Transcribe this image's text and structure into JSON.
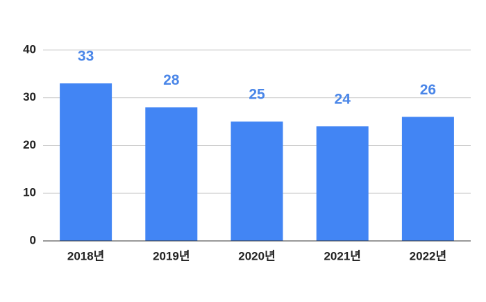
{
  "chart_data": {
    "type": "bar",
    "categories": [
      "2018년",
      "2019년",
      "2020년",
      "2021년",
      "2022년"
    ],
    "values": [
      33,
      28,
      25,
      24,
      26
    ],
    "color": "#4285f4",
    "ylim": [
      0,
      40
    ],
    "yticks": [
      0,
      10,
      20,
      30,
      40
    ],
    "grid": true
  }
}
